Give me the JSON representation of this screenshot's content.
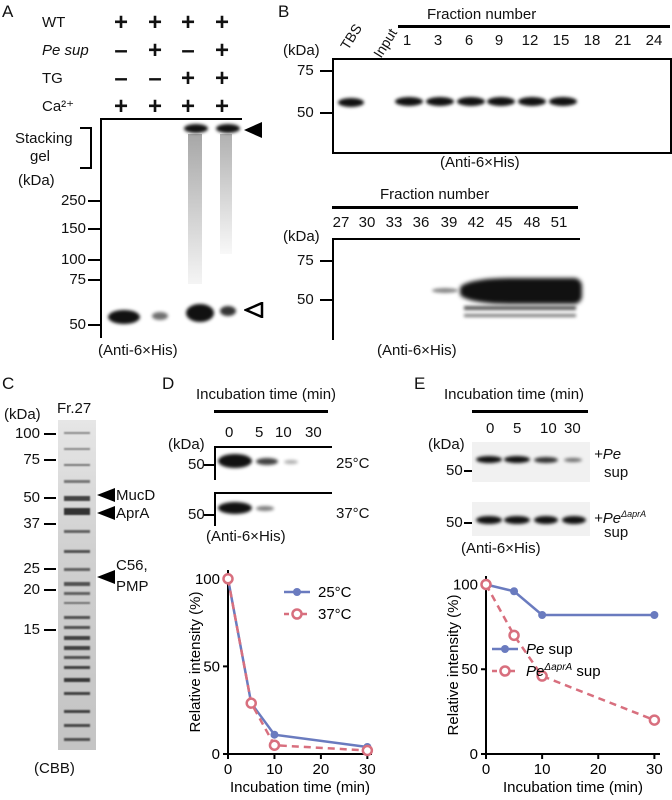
{
  "panels": {
    "A": {
      "letter": "A",
      "rows": [
        {
          "label": "WT",
          "marks": [
            "+",
            "+",
            "+",
            "+"
          ]
        },
        {
          "label": "Pe sup",
          "marks": [
            "–",
            "+",
            "–",
            "+"
          ]
        },
        {
          "label": "TG",
          "marks": [
            "–",
            "–",
            "+",
            "+"
          ]
        },
        {
          "label": "Ca²⁺",
          "marks": [
            "+",
            "+",
            "+",
            "+"
          ]
        }
      ],
      "stacking_label": [
        "Stacking",
        "gel"
      ],
      "kda": "(kDa)",
      "markers": [
        "250",
        "150",
        "100",
        "75",
        "50"
      ],
      "caption": "(Anti-6×His)"
    },
    "B": {
      "letter": "B",
      "top": {
        "kda": "(kDa)",
        "header": "Fraction number",
        "lane_labels": [
          "TBS",
          "Input"
        ],
        "fractions": [
          "1",
          "3",
          "6",
          "9",
          "12",
          "15",
          "18",
          "21",
          "24"
        ],
        "markers": [
          "75",
          "50"
        ],
        "caption": "(Anti-6×His)"
      },
      "bottom": {
        "kda": "(kDa)",
        "header": "Fraction number",
        "fractions": [
          "27",
          "30",
          "33",
          "36",
          "39",
          "42",
          "45",
          "48",
          "51"
        ],
        "markers": [
          "75",
          "50"
        ],
        "caption": "(Anti-6×His)"
      }
    },
    "C": {
      "letter": "C",
      "kda": "(kDa)",
      "lane": "Fr.27",
      "markers": [
        "100",
        "75",
        "50",
        "37",
        "25",
        "20",
        "15"
      ],
      "annotations": [
        "MucD",
        "AprA",
        "C56,",
        "PMP"
      ],
      "caption": "(CBB)"
    },
    "D": {
      "letter": "D",
      "header": "Incubation time (min)",
      "times": [
        "0",
        "5",
        "10",
        "30"
      ],
      "kda": "(kDa)",
      "marker": "50",
      "temps": [
        "25°C",
        "37°C"
      ],
      "caption": "(Anti-6×His)"
    },
    "E": {
      "letter": "E",
      "header": "Incubation time (min)",
      "times": [
        "0",
        "5",
        "10",
        "30"
      ],
      "kda": "(kDa)",
      "marker": "50",
      "blot1_label": [
        "+Pe",
        "sup"
      ],
      "blot2_label_prefix": "+Pe",
      "blot2_label_sup": "ΔaprA",
      "blot2_label_line2": "sup",
      "caption": "(Anti-6×His)"
    }
  },
  "chart_data": [
    {
      "panel": "D",
      "type": "line",
      "xlabel": "Incubation time (min)",
      "ylabel": "Relative intensity (%)",
      "xlim": [
        0,
        31
      ],
      "ylim": [
        0,
        105
      ],
      "xticks": [
        0,
        10,
        20,
        30
      ],
      "yticks": [
        0,
        50,
        100
      ],
      "legend_position": "top-right",
      "series": [
        {
          "name": "25°C",
          "color": "#6a7bbf",
          "style": "solid-dots",
          "x": [
            0,
            5,
            10,
            30
          ],
          "y": [
            100,
            29,
            11,
            4
          ]
        },
        {
          "name": "37°C",
          "color": "#d86f7e",
          "style": "dashed-circles",
          "x": [
            0,
            5,
            10,
            30
          ],
          "y": [
            100,
            29,
            5,
            2
          ]
        }
      ]
    },
    {
      "panel": "E",
      "type": "line",
      "xlabel": "Incubation time (min)",
      "ylabel": "Relative intensity (%)",
      "xlim": [
        0,
        31
      ],
      "ylim": [
        0,
        105
      ],
      "xticks": [
        0,
        10,
        20,
        30
      ],
      "yticks": [
        0,
        50,
        100
      ],
      "legend_position": "bottom-left",
      "series": [
        {
          "name": "Pe sup",
          "color": "#6a7bbf",
          "style": "solid-dots",
          "x": [
            0,
            5,
            10,
            30
          ],
          "y": [
            100,
            96,
            82,
            82
          ]
        },
        {
          "name": "PeΔaprA sup",
          "color": "#d86f7e",
          "style": "dashed-circles",
          "x": [
            0,
            5,
            10,
            30
          ],
          "y": [
            100,
            70,
            46,
            20
          ]
        }
      ]
    }
  ]
}
